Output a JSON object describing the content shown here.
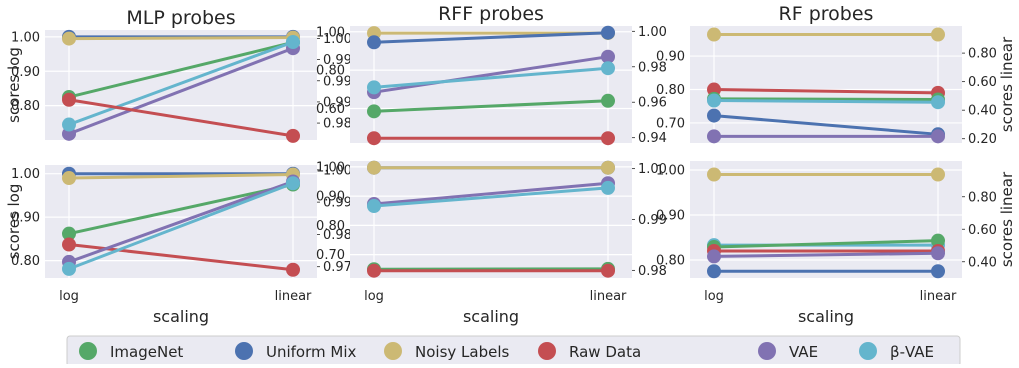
{
  "colors": {
    "ImageNet": "#55a868",
    "Uniform Mix": "#4c72b0",
    "Noisy Labels": "#ccb974",
    "Raw Data": "#c44e52",
    "VAE": "#8172b2",
    "beta-VAE": "#64b5cd",
    "panel_bg": "#eaeaf2",
    "grid": "#ffffff"
  },
  "legend": {
    "placement": "bottom-center",
    "items": [
      {
        "key": "ImageNet",
        "label": "ImageNet"
      },
      {
        "key": "Uniform Mix",
        "label": "Uniform Mix"
      },
      {
        "key": "Noisy Labels",
        "label": "Noisy Labels"
      },
      {
        "key": "Raw Data",
        "label": "Raw Data"
      },
      {
        "key": "VAE",
        "label": "VAE"
      },
      {
        "key": "beta-VAE",
        "label": "β-VAE"
      }
    ]
  },
  "chart_data": [
    {
      "type": "line",
      "title": "MLP probes",
      "xlabel": "",
      "ylabel": "scores log",
      "y2label": "",
      "categories": [
        "log",
        "linear"
      ],
      "ylim": [
        0.7,
        1.02
      ],
      "y2lim": [
        0.976,
        1.002
      ],
      "yticks": [
        {
          "v": 1.0,
          "t": "1.00"
        },
        {
          "v": 0.9,
          "t": "0.90"
        },
        {
          "v": 0.8,
          "t": "0.80"
        }
      ],
      "y2ticks": [
        {
          "v": 1.0,
          "t": "1.00"
        },
        {
          "v": 0.995,
          "t": "0.99"
        },
        {
          "v": 0.99,
          "t": "0.99"
        },
        {
          "v": 0.985,
          "t": "0.99"
        },
        {
          "v": 0.98,
          "t": "0.98"
        }
      ],
      "show_xticks": false,
      "series": [
        {
          "name": "Uniform Mix",
          "axis": "left",
          "values": [
            1.0,
            1.0
          ]
        },
        {
          "name": "Noisy Labels",
          "axis": "left",
          "values": [
            0.995,
            0.998
          ]
        },
        {
          "name": "ImageNet",
          "axis": "left",
          "values": [
            0.825,
            0.984
          ]
        },
        {
          "name": "VAE",
          "axis": "left",
          "values": [
            0.718,
            0.967
          ]
        },
        {
          "name": "beta-VAE",
          "axis": "left",
          "values": [
            0.745,
            0.985
          ]
        },
        {
          "name": "Raw Data",
          "axis": "left",
          "values": [
            0.817,
            0.712
          ]
        }
      ]
    },
    {
      "type": "line",
      "title": "RFF probes",
      "xlabel": "",
      "ylabel": "",
      "y2label": "",
      "categories": [
        "log",
        "linear"
      ],
      "ylim": [
        0.42,
        1.03
      ],
      "y2lim": [
        0.937,
        1.003
      ],
      "yticks": [
        {
          "v": 1.0,
          "t": "1.00"
        },
        {
          "v": 0.8,
          "t": "0.80"
        },
        {
          "v": 0.6,
          "t": "0.60"
        }
      ],
      "y2ticks": [
        {
          "v": 1.0,
          "t": "1.00"
        },
        {
          "v": 0.98,
          "t": "0.98"
        },
        {
          "v": 0.96,
          "t": "0.96"
        },
        {
          "v": 0.94,
          "t": "0.94"
        }
      ],
      "show_xticks": false,
      "series": [
        {
          "name": "Noisy Labels",
          "axis": "left",
          "values": [
            0.993,
            0.993
          ]
        },
        {
          "name": "Uniform Mix",
          "axis": "left",
          "values": [
            0.945,
            0.995
          ]
        },
        {
          "name": "VAE",
          "axis": "left",
          "values": [
            0.685,
            0.87
          ]
        },
        {
          "name": "beta-VAE",
          "axis": "left",
          "values": [
            0.71,
            0.81
          ]
        },
        {
          "name": "ImageNet",
          "axis": "left",
          "values": [
            0.585,
            0.64
          ]
        },
        {
          "name": "Raw Data",
          "axis": "left",
          "values": [
            0.445,
            0.445
          ]
        }
      ]
    },
    {
      "type": "line",
      "title": "RF probes",
      "xlabel": "",
      "ylabel": "",
      "y2label": "scores linear",
      "categories": [
        "log",
        "linear"
      ],
      "ylim": [
        0.64,
        0.99
      ],
      "y2lim": [
        0.17,
        0.99
      ],
      "yticks": [
        {
          "v": 0.9,
          "t": "0.90"
        },
        {
          "v": 0.8,
          "t": "0.80"
        },
        {
          "v": 0.7,
          "t": "0.70"
        }
      ],
      "y2ticks": [
        {
          "v": 0.8,
          "t": "0.80"
        },
        {
          "v": 0.6,
          "t": "0.60"
        },
        {
          "v": 0.4,
          "t": "0.40"
        },
        {
          "v": 0.2,
          "t": "0.20"
        }
      ],
      "show_xticks": false,
      "series": [
        {
          "name": "Noisy Labels",
          "axis": "right",
          "values": [
            0.93,
            0.93
          ]
        },
        {
          "name": "Raw Data",
          "axis": "left",
          "values": [
            0.8,
            0.79
          ]
        },
        {
          "name": "ImageNet",
          "axis": "left",
          "values": [
            0.772,
            0.77
          ]
        },
        {
          "name": "beta-VAE",
          "axis": "left",
          "values": [
            0.767,
            0.762
          ]
        },
        {
          "name": "Uniform Mix",
          "axis": "left",
          "values": [
            0.722,
            0.666
          ]
        },
        {
          "name": "VAE",
          "axis": "left",
          "values": [
            0.66,
            0.66
          ]
        }
      ]
    },
    {
      "type": "line",
      "title": "",
      "xlabel": "scaling",
      "ylabel": "scores log",
      "y2label": "",
      "categories": [
        "log",
        "linear"
      ],
      "ylim": [
        0.76,
        1.02
      ],
      "y2lim": [
        0.9665,
        1.0015
      ],
      "yticks": [
        {
          "v": 1.0,
          "t": "1.00"
        },
        {
          "v": 0.9,
          "t": "0.90"
        },
        {
          "v": 0.8,
          "t": "0.80"
        }
      ],
      "y2ticks": [
        {
          "v": 1.0,
          "t": "1.00"
        },
        {
          "v": 0.99,
          "t": "0.99"
        },
        {
          "v": 0.98,
          "t": "0.98"
        },
        {
          "v": 0.97,
          "t": "0.97"
        }
      ],
      "show_xticks": true,
      "series": [
        {
          "name": "Uniform Mix",
          "axis": "left",
          "values": [
            1.0,
            1.0
          ]
        },
        {
          "name": "Noisy Labels",
          "axis": "left",
          "values": [
            0.99,
            0.998
          ]
        },
        {
          "name": "ImageNet",
          "axis": "left",
          "values": [
            0.862,
            0.975
          ]
        },
        {
          "name": "Raw Data",
          "axis": "left",
          "values": [
            0.837,
            0.779
          ]
        },
        {
          "name": "VAE",
          "axis": "left",
          "values": [
            0.797,
            0.982
          ]
        },
        {
          "name": "beta-VAE",
          "axis": "left",
          "values": [
            0.781,
            0.978
          ]
        }
      ]
    },
    {
      "type": "line",
      "title": "",
      "xlabel": "scaling",
      "ylabel": "",
      "y2label": "",
      "categories": [
        "log",
        "linear"
      ],
      "ylim": [
        0.62,
        1.02
      ],
      "y2lim": [
        0.9785,
        1.0015
      ],
      "yticks": [
        {
          "v": 1.0,
          "t": "1.00"
        },
        {
          "v": 0.9,
          "t": "0.90"
        },
        {
          "v": 0.8,
          "t": "0.80"
        },
        {
          "v": 0.7,
          "t": "0.70"
        }
      ],
      "y2ticks": [
        {
          "v": 1.0,
          "t": "1.00"
        },
        {
          "v": 0.99,
          "t": "0.99"
        },
        {
          "v": 0.98,
          "t": "0.98"
        }
      ],
      "show_xticks": true,
      "series": [
        {
          "name": "Uniform Mix",
          "axis": "left",
          "values": [
            0.997,
            0.997
          ]
        },
        {
          "name": "Noisy Labels",
          "axis": "left",
          "values": [
            0.997,
            0.997
          ]
        },
        {
          "name": "VAE",
          "axis": "left",
          "values": [
            0.873,
            0.944
          ]
        },
        {
          "name": "beta-VAE",
          "axis": "left",
          "values": [
            0.866,
            0.928
          ]
        },
        {
          "name": "ImageNet",
          "axis": "left",
          "values": [
            0.65,
            0.651
          ]
        },
        {
          "name": "Raw Data",
          "axis": "left",
          "values": [
            0.645,
            0.645
          ]
        }
      ]
    },
    {
      "type": "line",
      "title": "",
      "xlabel": "scaling",
      "ylabel": "",
      "y2label": "scores linear",
      "categories": [
        "log",
        "linear"
      ],
      "ylim": [
        0.76,
        1.02
      ],
      "y2lim": [
        0.3,
        1.02
      ],
      "yticks": [
        {
          "v": 1.0,
          "t": "1.00"
        },
        {
          "v": 0.9,
          "t": "0.90"
        },
        {
          "v": 0.8,
          "t": "0.80"
        }
      ],
      "y2ticks": [
        {
          "v": 0.8,
          "t": "0.80"
        },
        {
          "v": 0.6,
          "t": "0.60"
        },
        {
          "v": 0.4,
          "t": "0.40"
        }
      ],
      "show_xticks": true,
      "series": [
        {
          "name": "Noisy Labels",
          "axis": "left",
          "values": [
            0.99,
            0.99
          ]
        },
        {
          "name": "beta-VAE",
          "axis": "left",
          "values": [
            0.833,
            0.833
          ]
        },
        {
          "name": "ImageNet",
          "axis": "left",
          "values": [
            0.829,
            0.843
          ]
        },
        {
          "name": "Raw Data",
          "axis": "left",
          "values": [
            0.82,
            0.82
          ]
        },
        {
          "name": "VAE",
          "axis": "left",
          "values": [
            0.808,
            0.815
          ]
        },
        {
          "name": "Uniform Mix",
          "axis": "left",
          "values": [
            0.775,
            0.775
          ]
        }
      ]
    }
  ]
}
